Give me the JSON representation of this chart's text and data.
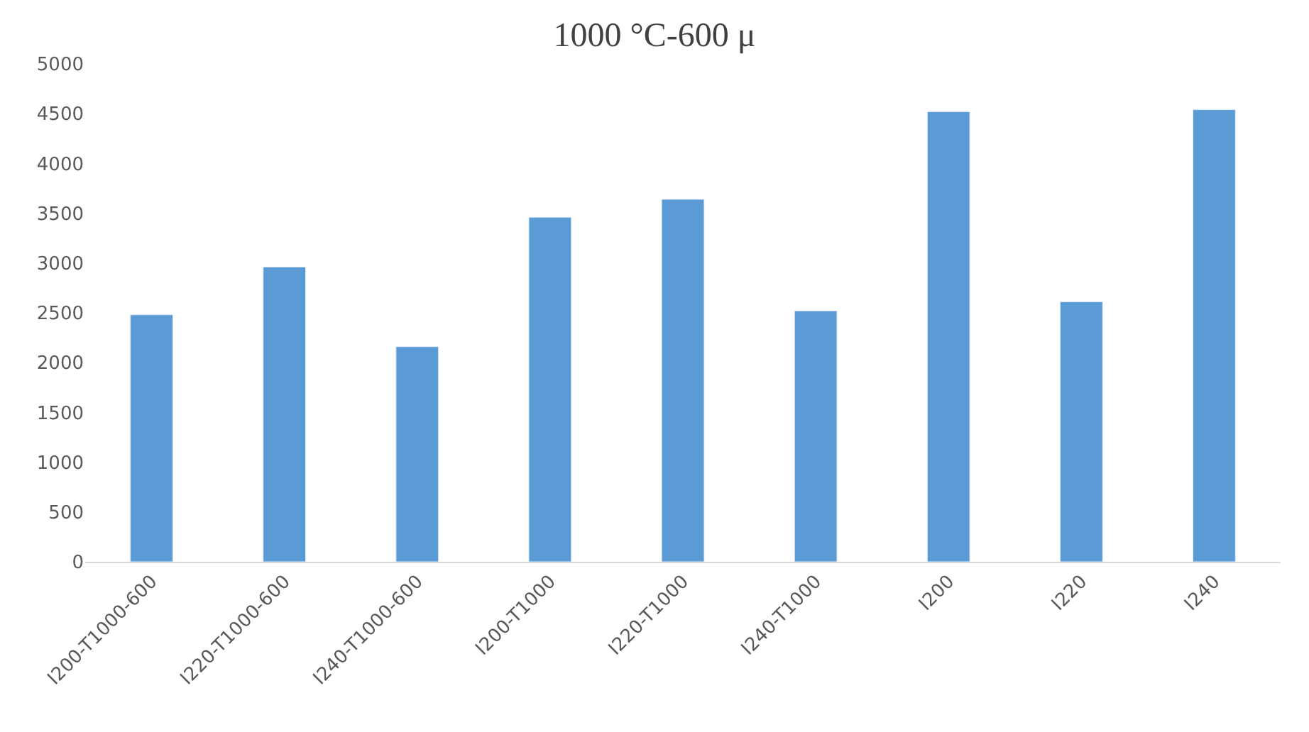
{
  "chart_data": {
    "type": "bar",
    "title": "1000 °C-600 μ",
    "categories": [
      "I200-T1000-600",
      "I220-T1000-600",
      "I240-T1000-600",
      "I200-T1000",
      "I220-T1000",
      "I240-T1000",
      "I200",
      "I220",
      "I240"
    ],
    "values": [
      2480,
      2960,
      2160,
      3460,
      3640,
      2520,
      4520,
      2610,
      4540
    ],
    "color": "#5b9bd5",
    "ylim": [
      0,
      5000
    ],
    "yticks": [
      0,
      500,
      1000,
      1500,
      2000,
      2500,
      3000,
      3500,
      4000,
      4500,
      5000
    ],
    "grid": false
  }
}
